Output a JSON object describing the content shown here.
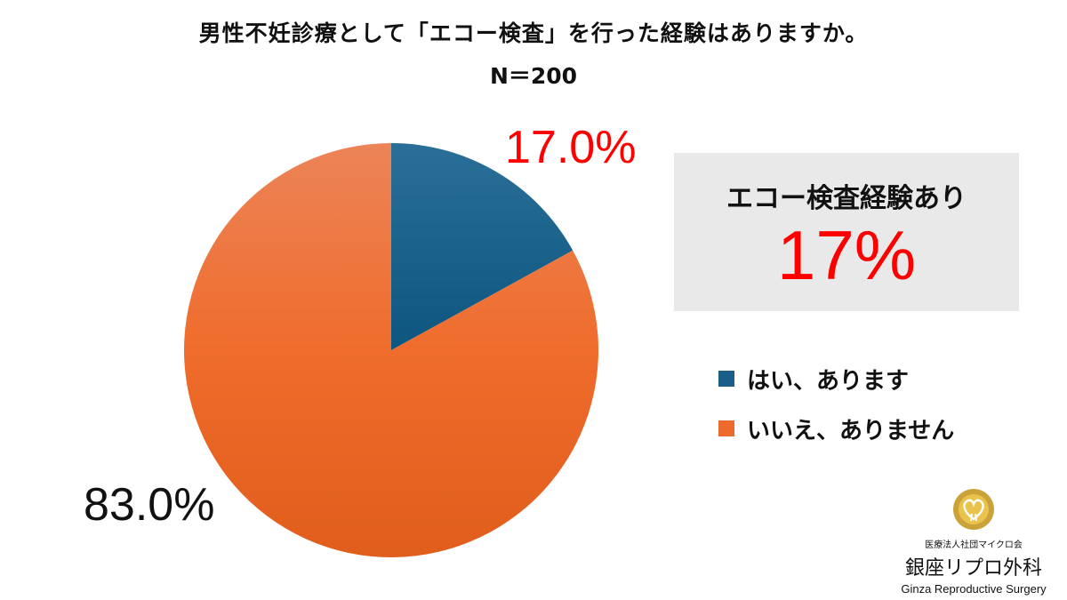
{
  "chart_data": {
    "type": "pie",
    "title": "男性不妊診療として「エコー検査」を行った経験はありますか。",
    "subtitle": "N＝200",
    "slices": [
      {
        "label": "はい、あります",
        "value": 17.0,
        "display": "17.0%",
        "color": "#1a5d87"
      },
      {
        "label": "いいえ、ありません",
        "value": 83.0,
        "display": "83.0%",
        "color": "#ec6a2c"
      }
    ],
    "legend_position": "right"
  },
  "callout": {
    "label": "エコー検査経験あり",
    "value": "17%"
  },
  "logo": {
    "org": "医療法人社団マイクロ会",
    "name": "銀座リプロ外科",
    "name_en": "Ginza Reproductive Surgery"
  }
}
